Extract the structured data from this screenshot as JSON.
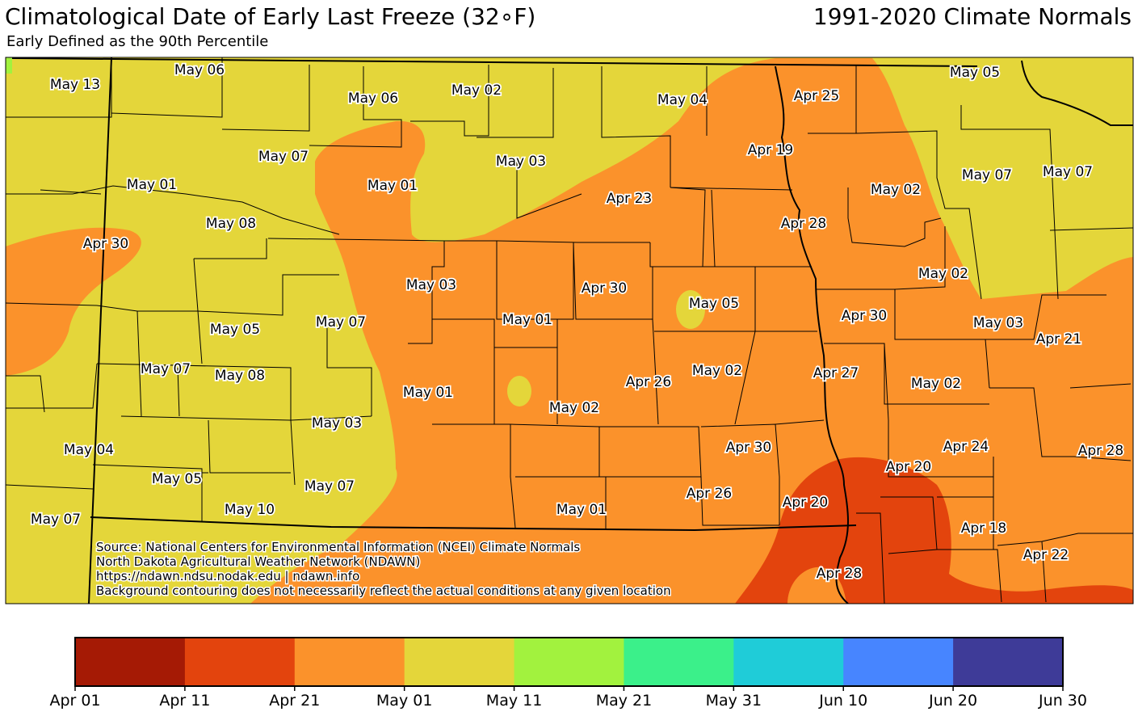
{
  "header": {
    "title": "Climatological Date of Early Last Freeze (32∘F)",
    "period": "1991-2020 Climate Normals",
    "subtitle": "Early Defined as the 90th Percentile"
  },
  "source_lines": [
    "Source: National Centers for Environmental Information (NCEI) Climate Normals",
    "North Dakota Agricultural Weather Network (NDAWN)",
    "https://ndawn.ndsu.nodak.edu | ndawn.info",
    "Background contouring does not necessarily reflect the actual conditions at any given location"
  ],
  "colors": {
    "dark_red": "#a51a05",
    "red_orange": "#e3440d",
    "orange": "#fb922b",
    "yellow": "#e4d63a",
    "lime": "#a2f23e",
    "green": "#3bf08a",
    "cyan": "#1fccd8",
    "blue": "#4785ff",
    "indigo": "#3e3b98"
  },
  "colorbar": {
    "labels": [
      "Apr 01",
      "Apr 11",
      "Apr 21",
      "May 01",
      "May 11",
      "May 21",
      "May 31",
      "Jun 10",
      "Jun 20",
      "Jun 30"
    ],
    "bins": [
      "dark_red",
      "red_orange",
      "orange",
      "yellow",
      "lime",
      "green",
      "cyan",
      "blue",
      "indigo"
    ]
  },
  "station_labels": [
    "May 13",
    "May 06",
    "May 06",
    "May 02",
    "May 04",
    "Apr 25",
    "May 05",
    "May 07",
    "Apr 19",
    "May 03",
    "May 07",
    "May 07",
    "May 01",
    "May 01",
    "Apr 23",
    "May 02",
    "May 08",
    "Apr 28",
    "Apr 30",
    "May 02",
    "May 03",
    "Apr 30",
    "May 05",
    "Apr 30",
    "May 03",
    "Apr 21",
    "May 07",
    "May 01",
    "May 05",
    "May 07",
    "May 08",
    "May 02",
    "Apr 27",
    "Apr 26",
    "May 02",
    "May 01",
    "May 02",
    "May 03",
    "Apr 24",
    "Apr 30",
    "May 04",
    "Apr 28",
    "Apr 20",
    "May 05",
    "May 07",
    "Apr 26",
    "Apr 20",
    "May 10",
    "May 01",
    "May 07",
    "Apr 18",
    "Apr 22",
    "Apr 28"
  ]
}
